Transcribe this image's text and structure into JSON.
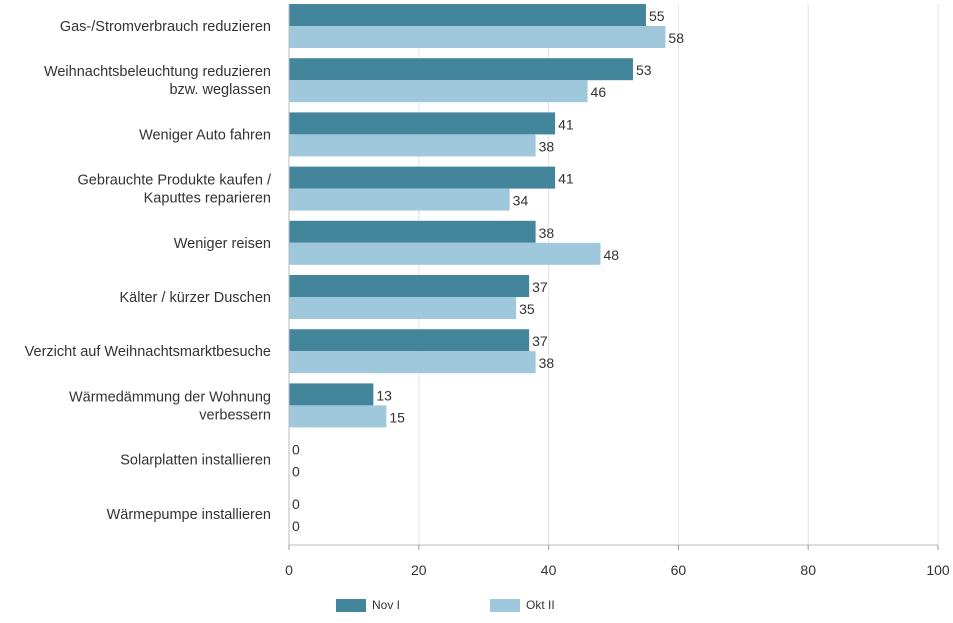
{
  "chart_data": {
    "type": "bar",
    "orientation": "horizontal",
    "categories": [
      "Gas-/Stromverbrauch reduzieren",
      "Weihnachtsbeleuchtung reduzieren bzw. weglassen",
      "Weniger Auto fahren",
      "Gebrauchte Produkte kaufen / Kaputtes reparieren",
      "Weniger reisen",
      "Kälter / kürzer Duschen",
      "Verzicht auf Weihnachtsmarktbesuche",
      "Wärmedämmung der Wohnung verbessern",
      "Solarplatten installieren",
      "Wärmepumpe installieren"
    ],
    "category_lines": [
      [
        "Gas-/Stromverbrauch reduzieren"
      ],
      [
        "Weihnachtsbeleuchtung reduzieren",
        "bzw. weglassen"
      ],
      [
        "Weniger Auto fahren"
      ],
      [
        "Gebrauchte Produkte kaufen /",
        "Kaputtes reparieren"
      ],
      [
        "Weniger reisen"
      ],
      [
        "Kälter / kürzer Duschen"
      ],
      [
        "Verzicht auf Weihnachtsmarktbesuche"
      ],
      [
        "Wärmedämmung der Wohnung",
        "verbessern"
      ],
      [
        "Solarplatten installieren"
      ],
      [
        "Wärmepumpe installieren"
      ]
    ],
    "series": [
      {
        "name": "Nov I",
        "color": "#43869c",
        "values": [
          55,
          53,
          41,
          41,
          38,
          37,
          37,
          13,
          0,
          0
        ]
      },
      {
        "name": "Okt II",
        "color": "#9fc8dc",
        "values": [
          58,
          46,
          38,
          34,
          48,
          35,
          38,
          15,
          0,
          0
        ]
      }
    ],
    "xlim": [
      0,
      100
    ],
    "xticks": [
      0,
      20,
      40,
      60,
      80,
      100
    ],
    "grid": true,
    "legend_position": "bottom",
    "data_labels": true
  }
}
